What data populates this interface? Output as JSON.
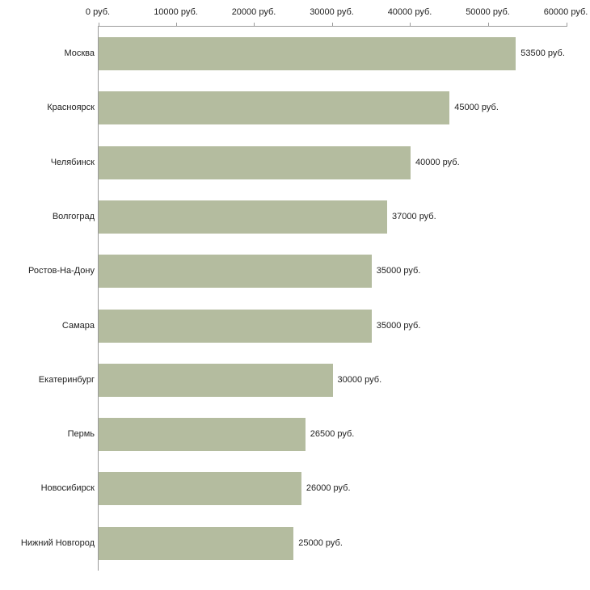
{
  "chart_data": {
    "type": "bar",
    "orientation": "horizontal",
    "title": "",
    "xlabel": "",
    "ylabel": "",
    "grid": false,
    "legend": "none",
    "categories": [
      "Москва",
      "Красноярск",
      "Челябинск",
      "Волгоград",
      "Ростов-На-Дону",
      "Самара",
      "Екатеринбург",
      "Пермь",
      "Новосибирск",
      "Нижний Новгород"
    ],
    "values": [
      53500,
      45000,
      40000,
      37000,
      35000,
      35000,
      30000,
      26500,
      26000,
      25000
    ],
    "value_labels": [
      "53500 руб.",
      "45000 руб.",
      "40000 руб.",
      "37000 руб.",
      "35000 руб.",
      "35000 руб.",
      "30000 руб.",
      "26500 руб.",
      "26000 руб.",
      "25000 руб."
    ],
    "x_axis": {
      "position": "top",
      "min": 0,
      "max": 60000,
      "ticks": [
        0,
        10000,
        20000,
        30000,
        40000,
        50000,
        60000
      ],
      "tick_labels": [
        "0 руб.",
        "10000 руб.",
        "20000 руб.",
        "30000 руб.",
        "40000 руб.",
        "50000 руб.",
        "60000 руб."
      ]
    },
    "colors": {
      "bar": "#b4bc9f",
      "axis": "#9b9b9b",
      "text": "#222222",
      "background": "#ffffff"
    }
  }
}
